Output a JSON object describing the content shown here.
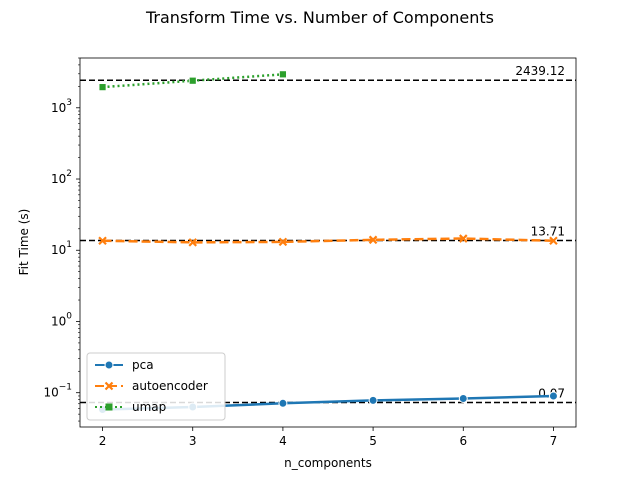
{
  "chart_data": {
    "type": "line",
    "title": "Transform Time vs. Number of Components",
    "xlabel": "n_components",
    "ylabel": "Fit Time (s)",
    "yscale": "log",
    "xlim": [
      1.75,
      7.25
    ],
    "ylim": [
      0.033,
      5000
    ],
    "x_ticks": [
      2,
      3,
      4,
      5,
      6,
      7
    ],
    "y_ticks": [
      {
        "value": 0.1,
        "base": "10",
        "exp": "−1"
      },
      {
        "value": 1,
        "base": "10",
        "exp": "0"
      },
      {
        "value": 10,
        "base": "10",
        "exp": "1"
      },
      {
        "value": 100,
        "base": "10",
        "exp": "2"
      },
      {
        "value": 1000,
        "base": "10",
        "exp": "3"
      }
    ],
    "grid": false,
    "legend_position": "lower-left",
    "series": [
      {
        "name": "pca",
        "color": "#1f77b4",
        "marker": "circle",
        "dash": "solid",
        "x": [
          2,
          3,
          4,
          5,
          6,
          7
        ],
        "y": [
          0.058,
          0.063,
          0.071,
          0.078,
          0.083,
          0.09
        ]
      },
      {
        "name": "autoencoder",
        "color": "#ff7f0e",
        "marker": "x",
        "dash": "dashed",
        "x": [
          2,
          3,
          4,
          5,
          6,
          7
        ],
        "y": [
          13.6,
          12.9,
          13.1,
          14.0,
          14.6,
          13.6
        ]
      },
      {
        "name": "umap",
        "color": "#2ca02c",
        "marker": "square",
        "dash": "dotted",
        "x": [
          2,
          3,
          4
        ],
        "y": [
          1950,
          2400,
          2950
        ]
      }
    ],
    "reference_lines": [
      {
        "value": 2439.12,
        "label": "2439.12"
      },
      {
        "value": 13.71,
        "label": "13.71"
      },
      {
        "value": 0.073,
        "label": "0.07"
      }
    ]
  }
}
